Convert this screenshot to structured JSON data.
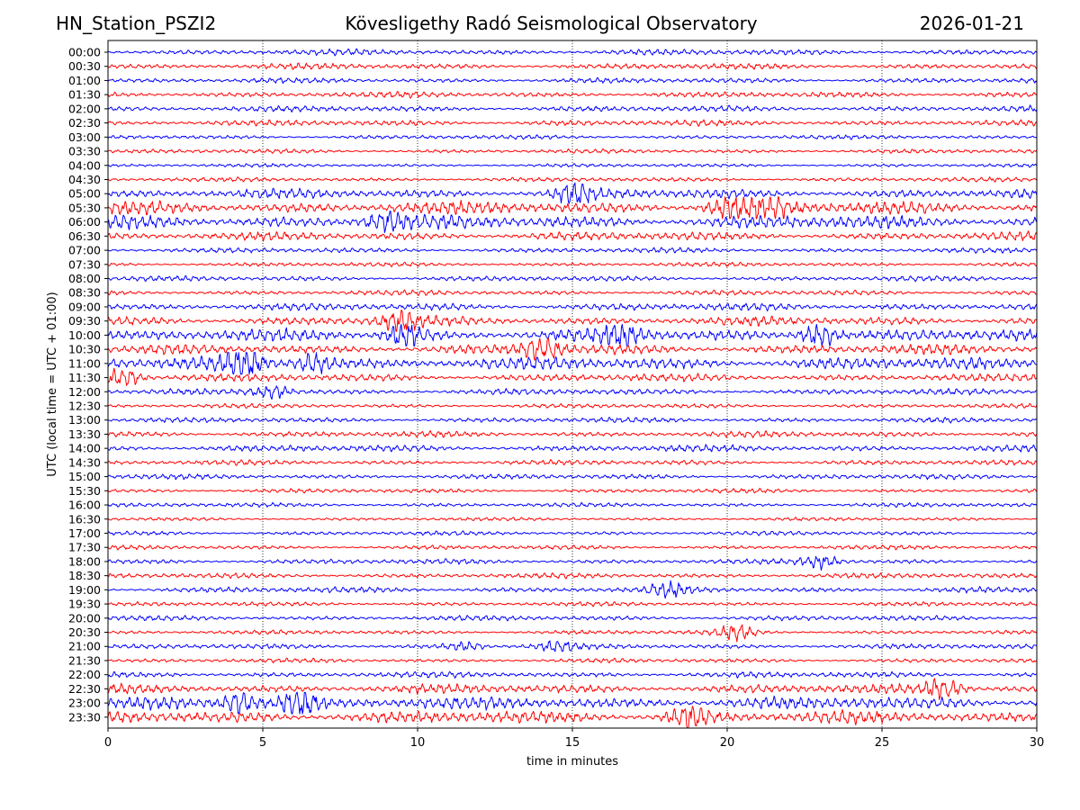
{
  "header": {
    "station": "HN_Station_PSZI2",
    "observatory": "Kövesligethy Radó Seismological Observatory",
    "date": "2026-01-21"
  },
  "chart_data": {
    "type": "line",
    "title": "Kövesligethy Radó Seismological Observatory",
    "xlabel": "time in minutes",
    "ylabel": "UTC (local time = UTC + 01:00)",
    "xlim": [
      0,
      30
    ],
    "xticks": [
      0,
      5,
      10,
      15,
      20,
      25,
      30
    ],
    "grid": "vertical dotted at 5 min",
    "row_labels": [
      "00:00",
      "00:30",
      "01:00",
      "01:30",
      "02:00",
      "02:30",
      "03:00",
      "03:30",
      "04:00",
      "04:30",
      "05:00",
      "05:30",
      "06:00",
      "06:30",
      "07:00",
      "07:30",
      "08:00",
      "08:30",
      "09:00",
      "09:30",
      "10:00",
      "10:30",
      "11:00",
      "11:30",
      "12:00",
      "12:30",
      "13:00",
      "13:30",
      "14:00",
      "14:30",
      "15:00",
      "15:30",
      "16:00",
      "16:30",
      "17:00",
      "17:30",
      "18:00",
      "18:30",
      "19:00",
      "19:30",
      "20:00",
      "20:30",
      "21:00",
      "21:30",
      "22:00",
      "22:30",
      "23:00",
      "23:30"
    ],
    "trace_colors": [
      "#0000ff",
      "#ff0000"
    ],
    "row_activity": [
      0.35,
      0.35,
      0.3,
      0.35,
      0.35,
      0.35,
      0.25,
      0.25,
      0.2,
      0.25,
      0.55,
      0.75,
      0.8,
      0.5,
      0.3,
      0.25,
      0.3,
      0.3,
      0.45,
      0.55,
      0.7,
      0.6,
      0.75,
      0.45,
      0.35,
      0.25,
      0.3,
      0.35,
      0.4,
      0.3,
      0.3,
      0.25,
      0.25,
      0.2,
      0.25,
      0.25,
      0.3,
      0.3,
      0.35,
      0.25,
      0.3,
      0.25,
      0.3,
      0.25,
      0.35,
      0.55,
      0.75,
      0.75
    ],
    "events": [
      {
        "row": "05:00",
        "x": 15.1,
        "amp": 1.2
      },
      {
        "row": "05:30",
        "x": 20.0,
        "amp": 1.3
      },
      {
        "row": "05:30",
        "x": 21.3,
        "amp": 1.4
      },
      {
        "row": "06:00",
        "x": 9.0,
        "amp": 1.2
      },
      {
        "row": "09:30",
        "x": 9.4,
        "amp": 1.2
      },
      {
        "row": "10:00",
        "x": 9.6,
        "amp": 1.5
      },
      {
        "row": "10:00",
        "x": 16.5,
        "amp": 1.4
      },
      {
        "row": "10:00",
        "x": 23.0,
        "amp": 1.5
      },
      {
        "row": "10:30",
        "x": 14.0,
        "amp": 1.4
      },
      {
        "row": "11:00",
        "x": 4.4,
        "amp": 2.2
      },
      {
        "row": "11:00",
        "x": 6.7,
        "amp": 1.3
      },
      {
        "row": "11:30",
        "x": 0.5,
        "amp": 1.2
      },
      {
        "row": "12:00",
        "x": 5.3,
        "amp": 0.9
      },
      {
        "row": "18:00",
        "x": 23.0,
        "amp": 0.8
      },
      {
        "row": "19:00",
        "x": 18.1,
        "amp": 0.9
      },
      {
        "row": "20:30",
        "x": 20.3,
        "amp": 0.9
      },
      {
        "row": "21:00",
        "x": 11.5,
        "amp": 0.5
      },
      {
        "row": "21:00",
        "x": 14.5,
        "amp": 0.6
      },
      {
        "row": "22:30",
        "x": 27.0,
        "amp": 1.3
      },
      {
        "row": "23:00",
        "x": 6.2,
        "amp": 1.8
      },
      {
        "row": "23:00",
        "x": 4.3,
        "amp": 1.5
      },
      {
        "row": "23:30",
        "x": 18.8,
        "amp": 1.4
      }
    ]
  }
}
